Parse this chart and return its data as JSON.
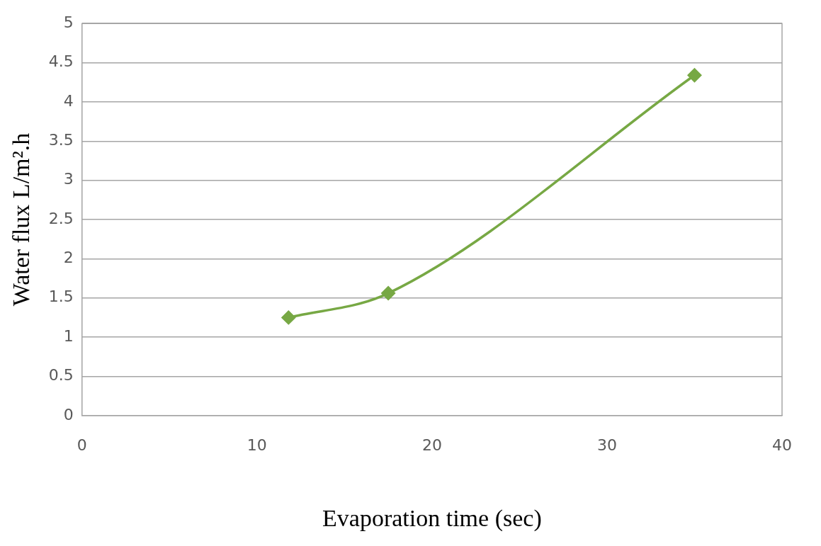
{
  "chart_data": {
    "type": "line",
    "xlabel": "Evaporation time (sec)",
    "ylabel": "Water flux L/m².h",
    "x": [
      11.8,
      17.5,
      35
    ],
    "series": [
      {
        "color": "#77a844",
        "values": [
          1.25,
          1.56,
          4.34
        ]
      }
    ],
    "xlim": [
      0,
      40
    ],
    "xticks": [
      0,
      10,
      20,
      30,
      40
    ],
    "ylim": [
      0,
      5
    ],
    "yticks": [
      0,
      0.5,
      1,
      1.5,
      2,
      2.5,
      3,
      3.5,
      4,
      4.5,
      5
    ],
    "grid": "y",
    "legend": false,
    "marker": "diamond",
    "line_style": "solid"
  }
}
